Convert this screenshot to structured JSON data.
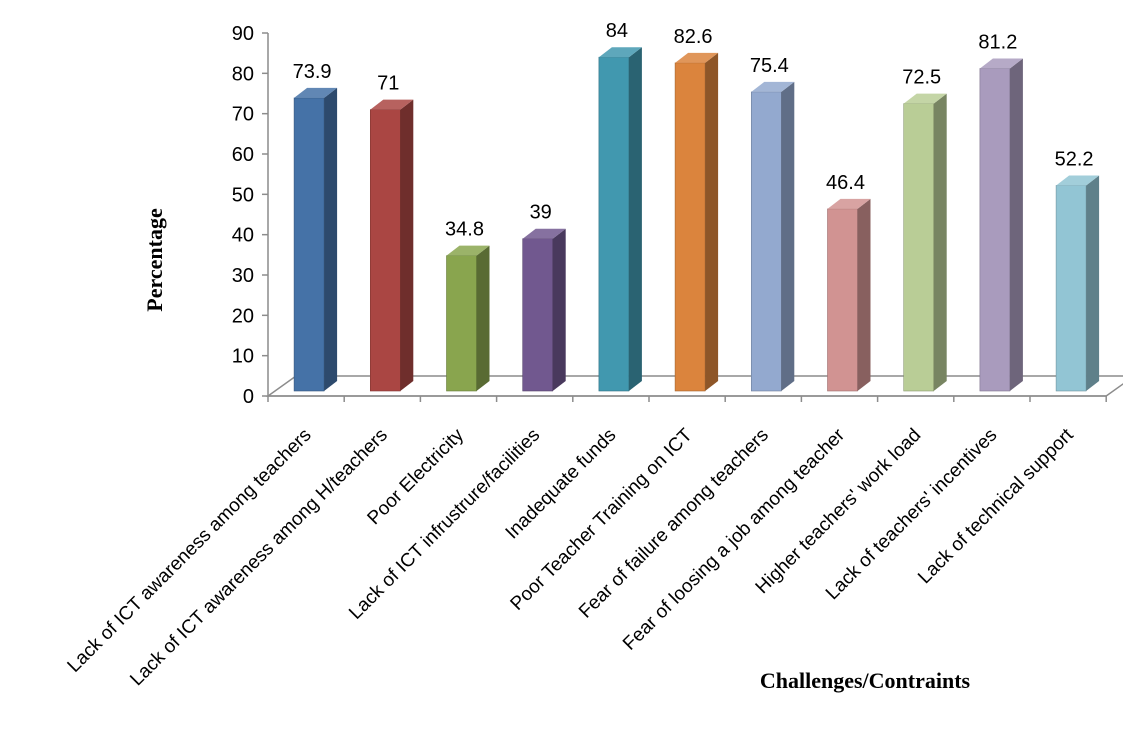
{
  "chart_data": {
    "type": "bar",
    "title": "",
    "xlabel": "Challenges/Contraints",
    "ylabel": "Percentage",
    "ylim": [
      0,
      90
    ],
    "yticks": [
      0,
      10,
      20,
      30,
      40,
      50,
      60,
      70,
      80,
      90
    ],
    "grid": false,
    "legend": "none",
    "categories": [
      "Lack of ICT awareness among teachers",
      "Lack of ICT awareness among H/teachers",
      "Poor Electricity",
      "Lack of ICT infrustrure/facilities",
      "Inadequate funds",
      "Poor Teacher Training on ICT",
      "Fear of failure among teachers",
      "Fear of loosing a job among teacher",
      "Higher teachers' work load",
      "Lack of teachers' incentives",
      "Lack of technical support"
    ],
    "values": [
      73.9,
      71,
      34.8,
      39,
      84,
      82.6,
      75.4,
      46.4,
      72.5,
      81.2,
      52.2
    ],
    "data_labels": [
      "73.9",
      "71",
      "34.8",
      "39",
      "84",
      "82.6",
      "75.4",
      "46.4",
      "72.5",
      "81.2",
      "52.2"
    ],
    "colors": [
      "#4572A7",
      "#AA4643",
      "#89A54E",
      "#71588F",
      "#4198AF",
      "#DB843D",
      "#93A9CF",
      "#D19392",
      "#B9CD96",
      "#A99BBD",
      "#92C5D4"
    ]
  }
}
